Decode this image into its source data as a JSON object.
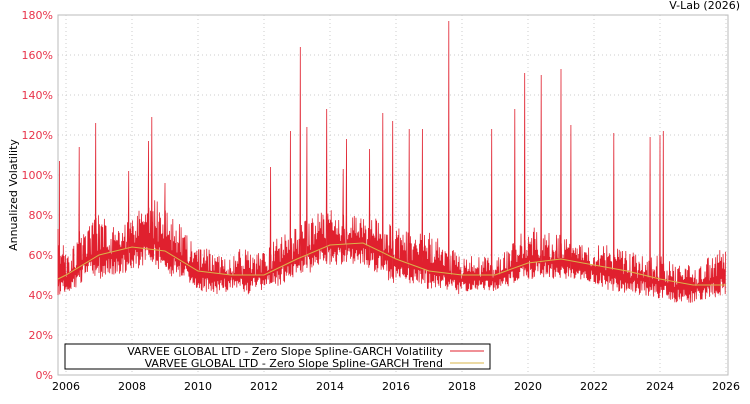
{
  "chart_data": {
    "type": "line",
    "title": "",
    "credit": "V-Lab (2026)",
    "xlabel": "",
    "ylabel": "Annualized Volatility",
    "xlim": [
      2005.75,
      2026.05
    ],
    "ylim": [
      0,
      180
    ],
    "grid": true,
    "legend_position": "bottom-left",
    "y_ticks": [
      "0%",
      "20%",
      "40%",
      "60%",
      "80%",
      "100%",
      "120%",
      "140%",
      "160%",
      "180%"
    ],
    "y_tick_values": [
      0,
      20,
      40,
      60,
      80,
      100,
      120,
      140,
      160,
      180
    ],
    "x_ticks": [
      "2006",
      "2008",
      "2010",
      "2012",
      "2014",
      "2016",
      "2018",
      "2020",
      "2022",
      "2024",
      "2026"
    ],
    "x_tick_values": [
      2006,
      2008,
      2010,
      2012,
      2014,
      2016,
      2018,
      2020,
      2022,
      2024,
      2026
    ],
    "series": [
      {
        "name": "VARVEE GLOBAL LTD - Zero Slope Spline-GARCH Volatility",
        "color": "#e0202e",
        "envelope_year_low_high": [
          [
            2005.75,
            40,
            75
          ],
          [
            2006.0,
            40,
            60
          ],
          [
            2006.5,
            45,
            75
          ],
          [
            2007.0,
            48,
            80
          ],
          [
            2007.5,
            50,
            75
          ],
          [
            2008.0,
            52,
            80
          ],
          [
            2008.5,
            55,
            90
          ],
          [
            2009.0,
            50,
            85
          ],
          [
            2009.5,
            48,
            75
          ],
          [
            2010.0,
            42,
            65
          ],
          [
            2010.5,
            40,
            62
          ],
          [
            2011.0,
            42,
            62
          ],
          [
            2011.5,
            40,
            65
          ],
          [
            2012.0,
            42,
            62
          ],
          [
            2012.5,
            45,
            70
          ],
          [
            2013.0,
            48,
            75
          ],
          [
            2013.5,
            52,
            80
          ],
          [
            2014.0,
            55,
            85
          ],
          [
            2014.5,
            55,
            80
          ],
          [
            2015.0,
            55,
            80
          ],
          [
            2015.5,
            50,
            78
          ],
          [
            2016.0,
            45,
            75
          ],
          [
            2016.5,
            45,
            70
          ],
          [
            2017.0,
            42,
            72
          ],
          [
            2017.5,
            42,
            65
          ],
          [
            2018.0,
            40,
            60
          ],
          [
            2018.5,
            42,
            60
          ],
          [
            2019.0,
            42,
            58
          ],
          [
            2019.5,
            45,
            65
          ],
          [
            2020.0,
            48,
            75
          ],
          [
            2020.5,
            48,
            72
          ],
          [
            2021.0,
            48,
            70
          ],
          [
            2021.5,
            48,
            65
          ],
          [
            2022.0,
            45,
            65
          ],
          [
            2022.5,
            42,
            65
          ],
          [
            2023.0,
            40,
            62
          ],
          [
            2023.5,
            40,
            60
          ],
          [
            2024.0,
            38,
            60
          ],
          [
            2024.5,
            36,
            55
          ],
          [
            2025.0,
            36,
            55
          ],
          [
            2025.5,
            38,
            60
          ],
          [
            2026.0,
            40,
            66
          ]
        ],
        "spikes_year_value": [
          [
            2005.8,
            107
          ],
          [
            2006.4,
            114
          ],
          [
            2006.9,
            126
          ],
          [
            2007.9,
            102
          ],
          [
            2008.5,
            117
          ],
          [
            2008.6,
            129
          ],
          [
            2009.0,
            96
          ],
          [
            2012.2,
            104
          ],
          [
            2012.8,
            122
          ],
          [
            2013.1,
            164
          ],
          [
            2013.3,
            124
          ],
          [
            2013.9,
            133
          ],
          [
            2014.4,
            103
          ],
          [
            2014.5,
            118
          ],
          [
            2015.2,
            113
          ],
          [
            2015.6,
            131
          ],
          [
            2015.9,
            127
          ],
          [
            2016.4,
            123
          ],
          [
            2016.8,
            123
          ],
          [
            2017.6,
            177
          ],
          [
            2018.9,
            123
          ],
          [
            2019.6,
            133
          ],
          [
            2019.9,
            151
          ],
          [
            2020.4,
            150
          ],
          [
            2021.0,
            153
          ],
          [
            2021.3,
            125
          ],
          [
            2022.6,
            121
          ],
          [
            2023.7,
            119
          ],
          [
            2024.0,
            120
          ],
          [
            2024.1,
            122
          ]
        ]
      },
      {
        "name": "VARVEE GLOBAL LTD - Zero Slope Spline-GARCH Trend",
        "color": "#d9b44a",
        "points_year_value": [
          [
            2005.75,
            48
          ],
          [
            2006,
            50
          ],
          [
            2007,
            60
          ],
          [
            2008,
            64
          ],
          [
            2009,
            62
          ],
          [
            2010,
            52
          ],
          [
            2011,
            50
          ],
          [
            2012,
            50
          ],
          [
            2013,
            58
          ],
          [
            2014,
            65
          ],
          [
            2015,
            66
          ],
          [
            2016,
            58
          ],
          [
            2017,
            52
          ],
          [
            2018,
            50
          ],
          [
            2019,
            50
          ],
          [
            2020,
            56
          ],
          [
            2021,
            58
          ],
          [
            2022,
            55
          ],
          [
            2023,
            52
          ],
          [
            2024,
            48
          ],
          [
            2025,
            45
          ],
          [
            2026,
            45
          ]
        ]
      }
    ]
  }
}
